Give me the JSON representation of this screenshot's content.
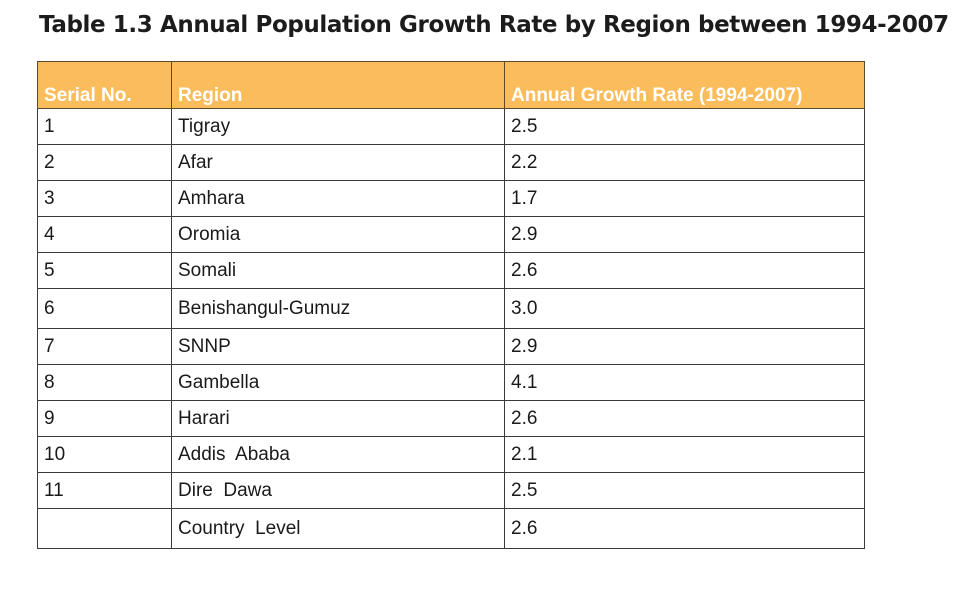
{
  "title": "Table 1.3 Annual Population Growth Rate by Region between 1994-2007",
  "header": {
    "serial": "Serial No.",
    "region": "Region",
    "rate": "Annual Growth Rate (1994-2007)"
  },
  "rows": [
    {
      "serial": "1",
      "region": "Tigray",
      "rate": "2.5"
    },
    {
      "serial": "2",
      "region": "Afar",
      "rate": "2.2"
    },
    {
      "serial": "3",
      "region": "Amhara",
      "rate": "1.7"
    },
    {
      "serial": "4",
      "region": "Oromia",
      "rate": "2.9"
    },
    {
      "serial": "5",
      "region": "Somali",
      "rate": "2.6"
    },
    {
      "serial": "6",
      "region": "Benishangul-Gumuz",
      "rate": "3.0"
    },
    {
      "serial": "7",
      "region": "SNNP",
      "rate": "2.9"
    },
    {
      "serial": "8",
      "region": "Gambella",
      "rate": "4.1"
    },
    {
      "serial": "9",
      "region": "Harari",
      "rate": "2.6"
    },
    {
      "serial": "10",
      "region": "Addis  Ababa",
      "rate": "2.1"
    },
    {
      "serial": "11",
      "region": "Dire  Dawa",
      "rate": "2.5"
    },
    {
      "serial": "",
      "region": "Country  Level",
      "rate": "2.6"
    }
  ],
  "colors": {
    "header_bg": "#fbbd5c",
    "header_text": "#ffffff",
    "border": "#3a3a3a"
  }
}
